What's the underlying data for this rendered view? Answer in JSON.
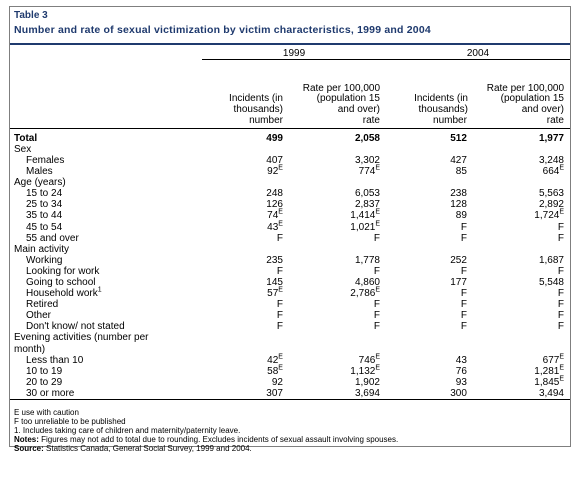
{
  "table_label": "Table 3",
  "title": "Number and rate of sexual victimization by victim characteristics, 1999 and 2004",
  "years": [
    "1999",
    "2004"
  ],
  "col_headers": {
    "incidents": "Incidents (in thousands)",
    "rate": "Rate per 100,000 (population 15 and over)"
  },
  "units": {
    "incidents": "number",
    "rate": "rate"
  },
  "rows": [
    {
      "type": "total",
      "label": "Total",
      "v": [
        "499",
        "2,058",
        "512",
        "1,977"
      ],
      "sup": [
        "",
        "",
        "",
        ""
      ]
    },
    {
      "type": "section",
      "label": "Sex"
    },
    {
      "type": "item",
      "label": "Females",
      "v": [
        "407",
        "3,302",
        "427",
        "3,248"
      ],
      "sup": [
        "",
        "",
        "",
        ""
      ]
    },
    {
      "type": "item",
      "label": "Males",
      "v": [
        "92",
        "774",
        "85",
        "664"
      ],
      "sup": [
        "E",
        "E",
        "",
        "E"
      ]
    },
    {
      "type": "section",
      "label": "Age (years)"
    },
    {
      "type": "item",
      "label": "15 to 24",
      "v": [
        "248",
        "6,053",
        "238",
        "5,563"
      ],
      "sup": [
        "",
        "",
        "",
        ""
      ]
    },
    {
      "type": "item",
      "label": "25 to 34",
      "v": [
        "126",
        "2,837",
        "128",
        "2,892"
      ],
      "sup": [
        "",
        "",
        "",
        ""
      ]
    },
    {
      "type": "item",
      "label": "35 to 44",
      "v": [
        "74",
        "1,414",
        "89",
        "1,724"
      ],
      "sup": [
        "E",
        "E",
        "",
        "E"
      ]
    },
    {
      "type": "item",
      "label": "45 to 54",
      "v": [
        "43",
        "1,021",
        "F",
        "F"
      ],
      "sup": [
        "E",
        "E",
        "",
        ""
      ]
    },
    {
      "type": "item",
      "label": "55 and over",
      "v": [
        "F",
        "F",
        "F",
        "F"
      ],
      "sup": [
        "",
        "",
        "",
        ""
      ]
    },
    {
      "type": "section",
      "label": "Main activity"
    },
    {
      "type": "item",
      "label": "Working",
      "v": [
        "235",
        "1,778",
        "252",
        "1,687"
      ],
      "sup": [
        "",
        "",
        "",
        ""
      ]
    },
    {
      "type": "item",
      "label": "Looking for work",
      "v": [
        "F",
        "F",
        "F",
        "F"
      ],
      "sup": [
        "",
        "",
        "",
        ""
      ]
    },
    {
      "type": "item",
      "label": "Going to school",
      "v": [
        "145",
        "4,860",
        "177",
        "5,548"
      ],
      "sup": [
        "",
        "",
        "",
        ""
      ]
    },
    {
      "type": "item",
      "label": "Household work",
      "label_sup": "1",
      "v": [
        "57",
        "2,786",
        "F",
        "F"
      ],
      "sup": [
        "E",
        "E",
        "",
        ""
      ]
    },
    {
      "type": "item",
      "label": "Retired",
      "v": [
        "F",
        "F",
        "F",
        "F"
      ],
      "sup": [
        "",
        "",
        "",
        ""
      ]
    },
    {
      "type": "item",
      "label": "Other",
      "v": [
        "F",
        "F",
        "F",
        "F"
      ],
      "sup": [
        "",
        "",
        "",
        ""
      ]
    },
    {
      "type": "item",
      "label": "Don't know/ not stated",
      "v": [
        "F",
        "F",
        "F",
        "F"
      ],
      "sup": [
        "",
        "",
        "",
        ""
      ]
    },
    {
      "type": "section",
      "label": "Evening activities (number per"
    },
    {
      "type": "cont",
      "label": "month)"
    },
    {
      "type": "item",
      "label": "Less than 10",
      "v": [
        "42",
        "746",
        "43",
        "677"
      ],
      "sup": [
        "E",
        "E",
        "",
        "E"
      ]
    },
    {
      "type": "item",
      "label": "10 to 19",
      "v": [
        "58",
        "1,132",
        "76",
        "1,281"
      ],
      "sup": [
        "E",
        "E",
        "",
        "E"
      ]
    },
    {
      "type": "item",
      "label": "20 to 29",
      "v": [
        "92",
        "1,902",
        "93",
        "1,845"
      ],
      "sup": [
        "",
        "",
        "",
        "E"
      ]
    },
    {
      "type": "item",
      "label": "30 or more",
      "v": [
        "307",
        "3,694",
        "300",
        "3,494"
      ],
      "sup": [
        "",
        "",
        "",
        ""
      ],
      "last": true
    }
  ],
  "notes": {
    "line1": "E use with caution",
    "line2": "F too unreliable to be published",
    "line3": "1. Includes taking care of children and maternity/paternity leave.",
    "notes_label": "Notes:",
    "notes_text": " Figures may not add to total due to rounding. Excludes incidents of sexual assault involving spouses.",
    "source_label": "Source:",
    "source_text": " Statistics Canada, General Social Survey, 1999 and 2004."
  }
}
